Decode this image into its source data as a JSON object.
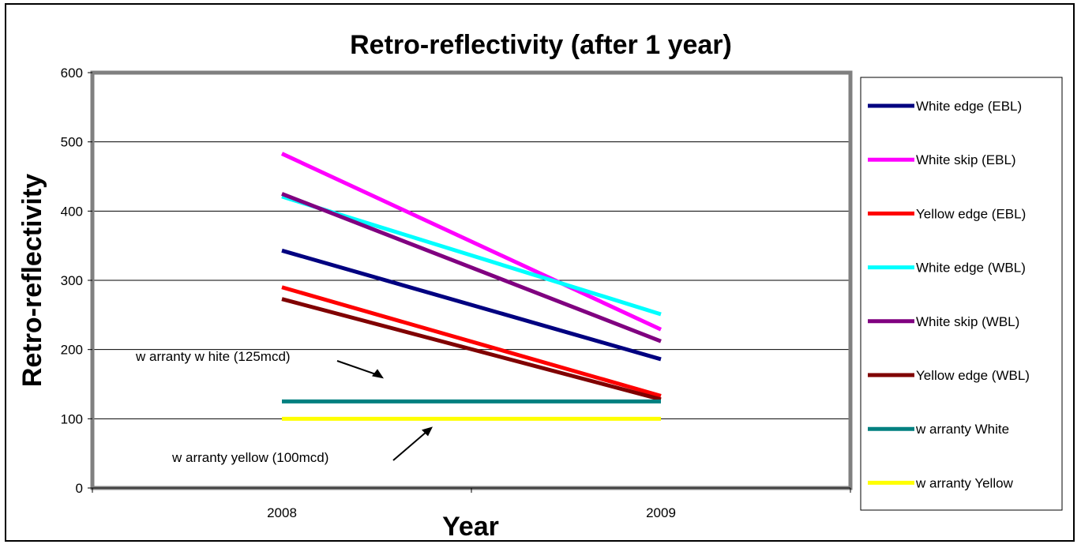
{
  "chart_data": {
    "type": "line",
    "title": "Retro-reflectivity (after 1 year)",
    "xlabel": "Year",
    "ylabel": "Retro-reflectivity",
    "categories": [
      "2008",
      "2009"
    ],
    "ylim": [
      0,
      600
    ],
    "yticks": [
      "0",
      "100",
      "200",
      "300",
      "400",
      "500",
      "600"
    ],
    "grid": true,
    "legend_position": "right",
    "series": [
      {
        "name": "White edge (EBL)",
        "values": [
          343,
          186
        ],
        "color": "#000080"
      },
      {
        "name": "White skip (EBL)",
        "values": [
          483,
          229
        ],
        "color": "#ff00ff"
      },
      {
        "name": "Yellow  edge (EBL)",
        "values": [
          290,
          133
        ],
        "color": "#ff0000"
      },
      {
        "name": "White edge (WBL)",
        "values": [
          421,
          251
        ],
        "color": "#00ffff"
      },
      {
        "name": "White skip (WBL)",
        "values": [
          425,
          212
        ],
        "color": "#800080"
      },
      {
        "name": "Yellow  edge (WBL)",
        "values": [
          273,
          128
        ],
        "color": "#800000"
      },
      {
        "name": "w arranty White",
        "values": [
          125,
          125
        ],
        "color": "#008080"
      },
      {
        "name": "w arranty Yellow",
        "values": [
          100,
          100
        ],
        "color": "#ffff00"
      }
    ],
    "annotations": [
      {
        "text": "w arranty w hite (125mcd)",
        "target": 125
      },
      {
        "text": "w arranty yellow  (100mcd)",
        "target": 100
      }
    ]
  }
}
